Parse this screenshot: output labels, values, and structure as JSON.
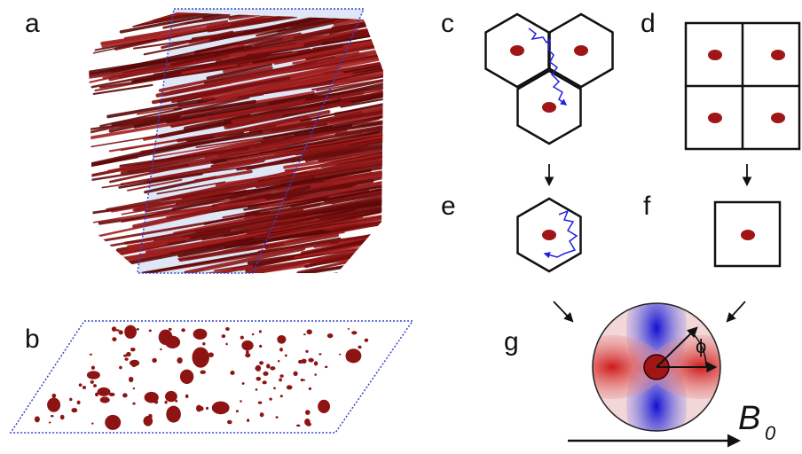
{
  "panels": [
    {
      "label": "a"
    },
    {
      "label": "b"
    },
    {
      "label": "c"
    },
    {
      "label": "d"
    },
    {
      "label": "e"
    },
    {
      "label": "f"
    },
    {
      "label": "g"
    }
  ],
  "angle_symbol": "ϕ",
  "field": {
    "symbol": "B",
    "subscript": "0"
  }
}
